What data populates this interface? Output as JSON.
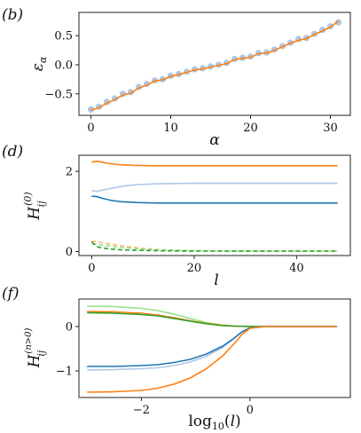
{
  "chart_data": [
    {
      "panel_label": "(b)",
      "type": "line",
      "xlabel": "α",
      "ylabel": "ε_α",
      "xlim": [
        -1.5,
        32.5
      ],
      "ylim": [
        -0.87,
        0.9
      ],
      "xticks": [
        0,
        10,
        20,
        30
      ],
      "yticks": [
        -0.5,
        0.0,
        0.5
      ],
      "xtick_labels": [
        "0",
        "10",
        "20",
        "30"
      ],
      "ytick_labels": [
        "−0.5",
        "0.0",
        "0.5"
      ],
      "grid": false,
      "series": [
        {
          "style": "markers",
          "color": "#aec7e8",
          "x": [
            0,
            1,
            2,
            3,
            4,
            5,
            6,
            7,
            8,
            9,
            10,
            11,
            12,
            13,
            14,
            15,
            16,
            17,
            18,
            19,
            20,
            21,
            22,
            23,
            24,
            25,
            26,
            27,
            28,
            29,
            30,
            31
          ],
          "y": [
            -0.77,
            -0.72,
            -0.64,
            -0.58,
            -0.5,
            -0.47,
            -0.38,
            -0.33,
            -0.27,
            -0.25,
            -0.19,
            -0.16,
            -0.12,
            -0.08,
            -0.06,
            -0.03,
            0.0,
            0.03,
            0.1,
            0.12,
            0.14,
            0.2,
            0.21,
            0.26,
            0.32,
            0.38,
            0.44,
            0.46,
            0.53,
            0.6,
            0.66,
            0.73
          ]
        },
        {
          "style": "line",
          "color": "#ff7f0e",
          "x": [
            0,
            1,
            2,
            3,
            4,
            5,
            6,
            7,
            8,
            9,
            10,
            11,
            12,
            13,
            14,
            15,
            16,
            17,
            18,
            19,
            20,
            21,
            22,
            23,
            24,
            25,
            26,
            27,
            28,
            29,
            30,
            31
          ],
          "y": [
            -0.78,
            -0.74,
            -0.66,
            -0.6,
            -0.52,
            -0.49,
            -0.4,
            -0.35,
            -0.28,
            -0.26,
            -0.2,
            -0.17,
            -0.13,
            -0.09,
            -0.07,
            -0.04,
            -0.01,
            0.02,
            0.09,
            0.11,
            0.13,
            0.19,
            0.2,
            0.25,
            0.31,
            0.37,
            0.42,
            0.45,
            0.52,
            0.58,
            0.65,
            0.75
          ]
        }
      ]
    },
    {
      "panel_label": "(d)",
      "type": "line",
      "xlabel": "l",
      "ylabel": "H_ij^(0)",
      "xlim": [
        -2.5,
        50.5
      ],
      "ylim": [
        -0.1,
        2.4
      ],
      "xticks": [
        0,
        20,
        40
      ],
      "yticks": [
        0,
        2
      ],
      "xtick_labels": [
        "0",
        "20",
        "40"
      ],
      "ytick_labels": [
        "0",
        "2"
      ],
      "grid": false,
      "series": [
        {
          "color": "#ff7f0e",
          "dash": false,
          "x": [
            0,
            1,
            2,
            3,
            5,
            8,
            12,
            20,
            30,
            40,
            48
          ],
          "y": [
            2.23,
            2.25,
            2.23,
            2.2,
            2.17,
            2.15,
            2.14,
            2.14,
            2.14,
            2.14,
            2.14
          ]
        },
        {
          "color": "#aec7e8",
          "dash": false,
          "x": [
            0,
            1,
            2,
            4,
            6,
            9,
            13,
            20,
            30,
            40,
            48
          ],
          "y": [
            1.52,
            1.5,
            1.53,
            1.58,
            1.63,
            1.67,
            1.69,
            1.7,
            1.7,
            1.7,
            1.7
          ]
        },
        {
          "color": "#1f77b4",
          "dash": false,
          "x": [
            0,
            1,
            2,
            4,
            6,
            9,
            13,
            20,
            30,
            40,
            48
          ],
          "y": [
            1.38,
            1.37,
            1.33,
            1.27,
            1.24,
            1.22,
            1.21,
            1.21,
            1.21,
            1.21,
            1.21
          ]
        },
        {
          "color": "#ffbb78",
          "dash": true,
          "x": [
            0,
            1,
            2,
            4,
            6,
            9,
            13,
            20,
            30,
            40,
            48
          ],
          "y": [
            0.26,
            0.24,
            0.22,
            0.18,
            0.14,
            0.09,
            0.05,
            0.02,
            0.01,
            0.01,
            0.01
          ]
        },
        {
          "color": "#98df8a",
          "dash": true,
          "x": [
            0,
            1,
            2,
            4,
            6,
            9,
            13,
            20,
            30,
            40,
            48
          ],
          "y": [
            0.2,
            0.18,
            0.16,
            0.13,
            0.1,
            0.07,
            0.04,
            0.02,
            0.01,
            0.01,
            0.01
          ]
        },
        {
          "color": "#2ca02c",
          "dash": true,
          "x": [
            0,
            1,
            2,
            4,
            6,
            9,
            13,
            20,
            30,
            40,
            48
          ],
          "y": [
            0.24,
            0.12,
            0.09,
            0.06,
            0.04,
            0.03,
            0.02,
            0.01,
            0.01,
            0.01,
            0.01
          ]
        }
      ]
    },
    {
      "panel_label": "(f)",
      "type": "line",
      "xlabel": "log₁₀(l)",
      "ylabel": "H_ij^(n>0)",
      "xlim": [
        -3.15,
        1.85
      ],
      "ylim": [
        -1.6,
        0.62
      ],
      "xticks": [
        -2,
        0
      ],
      "yticks": [
        -1,
        0
      ],
      "xtick_labels": [
        "−2",
        "0"
      ],
      "ytick_labels": [
        "−1",
        "0"
      ],
      "grid": false,
      "series": [
        {
          "color": "#98df8a",
          "dash": false,
          "x": [
            -3,
            -2.5,
            -2,
            -1.7,
            -1.4,
            -1.1,
            -0.8,
            -0.5,
            -0.3,
            0,
            0.5,
            1,
            1.6
          ],
          "y": [
            0.46,
            0.45,
            0.41,
            0.36,
            0.28,
            0.18,
            0.09,
            0.03,
            0.01,
            0,
            0,
            0,
            0
          ]
        },
        {
          "color": "#ff7f0e",
          "dash": false,
          "x": [
            -3,
            -2.5,
            -2,
            -1.7,
            -1.4,
            -1.1,
            -0.8,
            -0.5,
            -0.3,
            0,
            0.5,
            1,
            1.6
          ],
          "y": [
            0.34,
            0.33,
            0.3,
            0.26,
            0.2,
            0.13,
            0.07,
            0.03,
            0.01,
            0,
            0,
            0,
            0
          ]
        },
        {
          "color": "#2ca02c",
          "dash": false,
          "x": [
            -3,
            -2.5,
            -2,
            -1.7,
            -1.4,
            -1.1,
            -0.8,
            -0.5,
            -0.3,
            0,
            0.5,
            1,
            1.6
          ],
          "y": [
            0.31,
            0.3,
            0.27,
            0.24,
            0.18,
            0.12,
            0.06,
            0.02,
            0.01,
            0,
            0,
            0,
            0
          ]
        },
        {
          "color": "#aec7e8",
          "dash": false,
          "x": [
            -3,
            -2.5,
            -2,
            -1.7,
            -1.4,
            -1.1,
            -0.8,
            -0.5,
            -0.3,
            -0.15,
            0,
            0.3,
            1,
            1.6
          ],
          "y": [
            -0.98,
            -0.97,
            -0.95,
            -0.93,
            -0.88,
            -0.8,
            -0.67,
            -0.47,
            -0.28,
            -0.12,
            -0.03,
            0,
            0,
            0
          ]
        },
        {
          "color": "#1f77b4",
          "dash": false,
          "x": [
            -3,
            -2.5,
            -2,
            -1.7,
            -1.4,
            -1.1,
            -0.8,
            -0.5,
            -0.3,
            -0.15,
            0,
            0.3,
            1,
            1.6
          ],
          "y": [
            -0.9,
            -0.9,
            -0.88,
            -0.86,
            -0.81,
            -0.74,
            -0.62,
            -0.44,
            -0.27,
            -0.12,
            -0.03,
            0,
            0,
            0
          ]
        },
        {
          "color": "#ff7f0e",
          "dash": false,
          "x": [
            -3,
            -2.5,
            -2,
            -1.7,
            -1.4,
            -1.1,
            -0.8,
            -0.5,
            -0.3,
            -0.15,
            0,
            0.3,
            1,
            1.6
          ],
          "y": [
            -1.48,
            -1.47,
            -1.44,
            -1.39,
            -1.3,
            -1.16,
            -0.95,
            -0.66,
            -0.4,
            -0.18,
            -0.04,
            0,
            0,
            0
          ]
        }
      ]
    }
  ]
}
